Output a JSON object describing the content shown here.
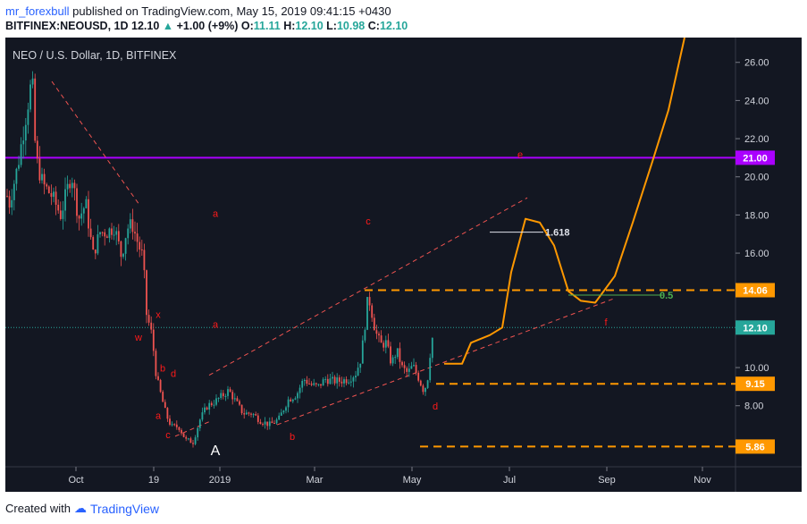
{
  "header": {
    "author": "mr_forexbull",
    "published_text": "published on TradingView.com, May 15, 2019 09:41:15 +0430",
    "symbol": "BITFINEX:NEOUSD, 1D",
    "last": "12.10",
    "change": "+1.00 (+9%)",
    "o_label": "O:",
    "o": "11.11",
    "h_label": "H:",
    "h": "12.10",
    "l_label": "L:",
    "l": "10.98",
    "c_label": "C:",
    "c": "12.10"
  },
  "footer": {
    "created_with": "Created with",
    "brand": "TradingView"
  },
  "colors": {
    "background": "#131722",
    "bull": "#26a69a",
    "bear": "#ef5350",
    "projection": "#ff9800",
    "resistance_line": "#aa00ff",
    "label_red": "#ff1a1a",
    "fib_text": "#e0e3eb",
    "level_green": "#4caf50"
  },
  "chart_data": {
    "type": "candlestick",
    "title": "NEO / U.S. Dollar, 1D, BITFINEX",
    "ylim": [
      4.8,
      27.3
    ],
    "y_ticks": [
      "26.00",
      "24.00",
      "22.00",
      "20.00",
      "18.00",
      "16.00",
      "14.00",
      "12.00",
      "10.00",
      "8.00",
      "6.00"
    ],
    "x_ticks": [
      "Oct",
      "19",
      "2019",
      "Mar",
      "May",
      "Jul",
      "Sep",
      "Nov"
    ],
    "price_labels": [
      {
        "value": "21.00",
        "color": "#aa00ff"
      },
      {
        "value": "14.06",
        "color": "#ff9800"
      },
      {
        "value": "12.10",
        "color": "#26a69a"
      },
      {
        "value": "9.15",
        "color": "#ff9800"
      },
      {
        "value": "5.86",
        "color": "#ff9800"
      }
    ],
    "price_path": [
      [
        0,
        21.0
      ],
      [
        10,
        18.5
      ],
      [
        20,
        20.6
      ],
      [
        30,
        23.5
      ],
      [
        36,
        25.2
      ],
      [
        40,
        21.0
      ],
      [
        48,
        19.6
      ],
      [
        58,
        19.0
      ],
      [
        68,
        18.0
      ],
      [
        80,
        20.2
      ],
      [
        88,
        17.8
      ],
      [
        96,
        18.6
      ],
      [
        104,
        15.9
      ],
      [
        112,
        17.1
      ],
      [
        120,
        17.1
      ],
      [
        128,
        17.4
      ],
      [
        136,
        15.8
      ],
      [
        142,
        17.3
      ],
      [
        148,
        17.5
      ],
      [
        155,
        16.4
      ],
      [
        160,
        15.8
      ],
      [
        164,
        12.8
      ],
      [
        170,
        11.7
      ],
      [
        175,
        9.5
      ],
      [
        181,
        8.4
      ],
      [
        186,
        7.5
      ],
      [
        192,
        6.9
      ],
      [
        200,
        6.9
      ],
      [
        208,
        6.2
      ],
      [
        216,
        6.1
      ],
      [
        224,
        7.3
      ],
      [
        232,
        8.0
      ],
      [
        240,
        8.2
      ],
      [
        248,
        8.5
      ],
      [
        256,
        8.8
      ],
      [
        264,
        8.2
      ],
      [
        272,
        7.6
      ],
      [
        282,
        7.6
      ],
      [
        292,
        7.2
      ],
      [
        302,
        7.0
      ],
      [
        312,
        7.3
      ],
      [
        322,
        8.3
      ],
      [
        332,
        8.6
      ],
      [
        340,
        9.4
      ],
      [
        348,
        9.1
      ],
      [
        356,
        9.0
      ],
      [
        364,
        9.4
      ],
      [
        372,
        9.3
      ],
      [
        380,
        9.3
      ],
      [
        390,
        9.4
      ],
      [
        398,
        9.7
      ],
      [
        404,
        10.5
      ],
      [
        408,
        12.1
      ],
      [
        412,
        13.8
      ],
      [
        416,
        12.9
      ],
      [
        420,
        11.9
      ],
      [
        426,
        11.2
      ],
      [
        432,
        11.3
      ],
      [
        438,
        10.2
      ],
      [
        444,
        10.9
      ],
      [
        450,
        10.0
      ],
      [
        456,
        9.7
      ],
      [
        462,
        10.1
      ],
      [
        468,
        9.5
      ],
      [
        474,
        8.8
      ],
      [
        478,
        9.2
      ],
      [
        482,
        11.1
      ],
      [
        486,
        12.1
      ]
    ],
    "projection_path": [
      [
        497,
        10.2
      ],
      [
        517,
        10.2
      ],
      [
        527,
        11.3
      ],
      [
        548,
        11.7
      ],
      [
        562,
        12.1
      ],
      [
        572,
        15.0
      ],
      [
        588,
        17.8
      ],
      [
        604,
        17.6
      ],
      [
        620,
        16.4
      ],
      [
        636,
        14.0
      ],
      [
        650,
        13.5
      ],
      [
        666,
        13.4
      ],
      [
        688,
        14.8
      ],
      [
        708,
        17.6
      ],
      [
        730,
        20.8
      ],
      [
        748,
        23.5
      ],
      [
        766,
        27.3
      ]
    ],
    "horizontal_levels": [
      {
        "value": 21.0,
        "style": "solid",
        "color": "#aa00ff"
      },
      {
        "value": 14.06,
        "style": "dashed",
        "color": "#ff9800",
        "from": 408
      },
      {
        "value": 9.15,
        "style": "dashed",
        "color": "#ff9800",
        "from": 488
      },
      {
        "value": 5.86,
        "style": "dashed",
        "color": "#ff9800",
        "from": 470
      },
      {
        "value": 12.1,
        "style": "dotted",
        "color": "#26a69a"
      }
    ],
    "fib_lines": [
      {
        "label": "1.618",
        "value": 17.1,
        "from": 548,
        "to": 608,
        "color": "#e0e3eb"
      },
      {
        "label": "0.5",
        "value": 13.8,
        "from": 636,
        "to": 742,
        "color": "#4caf50"
      }
    ],
    "trendlines": [
      [
        [
          58,
          25.0
        ],
        [
          155,
          18.6
        ]
      ],
      [
        [
          234,
          9.6
        ],
        [
          590,
          18.9
        ]
      ],
      [
        [
          310,
          7.0
        ],
        [
          686,
          13.6
        ]
      ],
      [
        [
          196,
          6.4
        ],
        [
          236,
          7.2
        ]
      ]
    ],
    "wave_labels": [
      {
        "text": "a",
        "x": 241,
        "y": 17.9
      },
      {
        "text": "c",
        "x": 412,
        "y": 17.5
      },
      {
        "text": "e",
        "x": 582,
        "y": 21.0
      },
      {
        "text": "x",
        "x": 177,
        "y": 12.6
      },
      {
        "text": "a",
        "x": 241,
        "y": 12.1
      },
      {
        "text": "f",
        "x": 678,
        "y": 12.2
      },
      {
        "text": "w",
        "x": 155,
        "y": 11.4
      },
      {
        "text": "b",
        "x": 182,
        "y": 9.8
      },
      {
        "text": "d",
        "x": 194,
        "y": 9.5
      },
      {
        "text": "a",
        "x": 177,
        "y": 7.3
      },
      {
        "text": "c",
        "x": 188,
        "y": 6.3
      },
      {
        "text": "b",
        "x": 327,
        "y": 6.2
      },
      {
        "text": "d",
        "x": 487,
        "y": 7.8
      },
      {
        "text": "A",
        "x": 241,
        "y": 5.4
      }
    ]
  }
}
